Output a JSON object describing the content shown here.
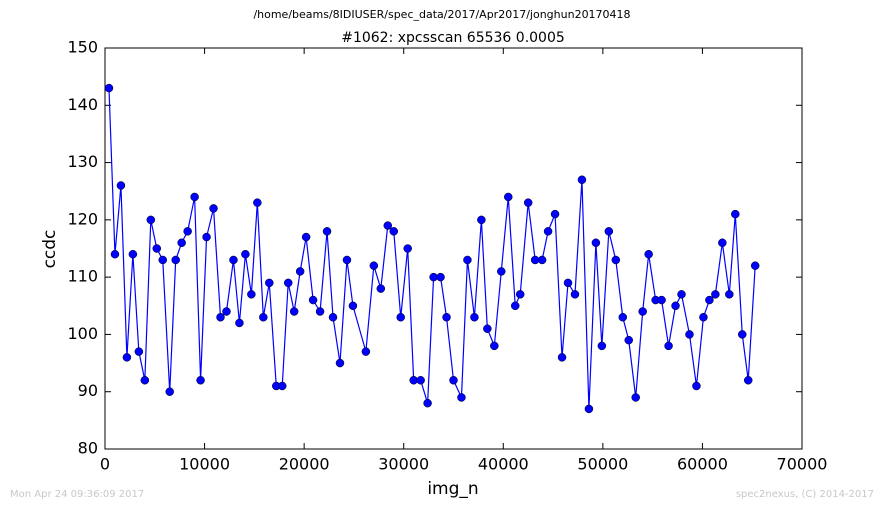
{
  "chart_data": {
    "type": "line",
    "suptitle": "/home/beams/8IDIUSER/spec_data/2017/Apr2017/jonghun20170418",
    "title": "#1062: xpcsscan 65536 0.0005",
    "x_label": "img_n",
    "y_label": "ccdc",
    "footer_left": "Mon Apr 24 09:36:09 2017",
    "footer_right": "spec2nexus, (C) 2014-2017",
    "xlim": [
      0,
      70000
    ],
    "xticks": [
      0,
      10000,
      20000,
      30000,
      40000,
      50000,
      60000,
      70000
    ],
    "ylim": [
      80,
      150
    ],
    "yticks": [
      80,
      90,
      100,
      110,
      120,
      130,
      140,
      150
    ],
    "grid": false,
    "x": [
      400,
      1000,
      1600,
      2200,
      2800,
      3400,
      4000,
      4600,
      5200,
      5800,
      6500,
      7100,
      7700,
      8300,
      9000,
      9600,
      10200,
      10900,
      11600,
      12200,
      12900,
      13500,
      14100,
      14700,
      15300,
      15900,
      16500,
      17200,
      17800,
      18400,
      19000,
      19600,
      20200,
      20900,
      21600,
      22300,
      22900,
      23600,
      24300,
      24900,
      26200,
      27000,
      27700,
      28400,
      29000,
      29700,
      30400,
      31000,
      31700,
      32400,
      33000,
      33700,
      34300,
      35000,
      35800,
      36400,
      37100,
      37800,
      38400,
      39100,
      39800,
      40500,
      41200,
      41700,
      42500,
      43200,
      43900,
      44500,
      45200,
      45900,
      46500,
      47200,
      47900,
      48600,
      49300,
      49900,
      50600,
      51300,
      52000,
      52600,
      53300,
      54000,
      54600,
      55300,
      55900,
      56600,
      57300,
      57900,
      58700,
      59400,
      60100,
      60700,
      61300,
      62000,
      62700,
      63300,
      64000,
      64600,
      65300
    ],
    "series": [
      {
        "name": "ccdc",
        "color": "#0000ff",
        "values": [
          143,
          114,
          126,
          96,
          114,
          97,
          92,
          120,
          115,
          113,
          90,
          113,
          116,
          118,
          124,
          92,
          117,
          122,
          103,
          104,
          113,
          102,
          114,
          107,
          123,
          103,
          109,
          91,
          91,
          109,
          104,
          111,
          117,
          106,
          104,
          118,
          103,
          95,
          113,
          105,
          97,
          112,
          108,
          119,
          118,
          103,
          115,
          92,
          92,
          88,
          110,
          110,
          103,
          92,
          89,
          113,
          103,
          120,
          101,
          98,
          111,
          124,
          105,
          107,
          123,
          113,
          113,
          118,
          121,
          96,
          109,
          107,
          127,
          87,
          116,
          98,
          118,
          113,
          103,
          99,
          89,
          104,
          114,
          106,
          106,
          98,
          105,
          107,
          100,
          91,
          103,
          106,
          107,
          116,
          107,
          121,
          100,
          92,
          112
        ]
      }
    ]
  }
}
